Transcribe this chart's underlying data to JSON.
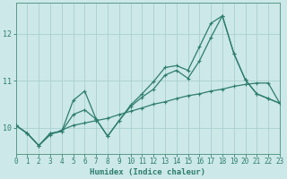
{
  "title": "",
  "xlabel": "Humidex (Indice chaleur)",
  "ylabel": "",
  "background_color": "#cce8e8",
  "grid_color": "#aacfcf",
  "line_color": "#2e7d6e",
  "x_values": [
    0,
    1,
    2,
    3,
    4,
    5,
    6,
    7,
    8,
    9,
    10,
    11,
    12,
    13,
    14,
    15,
    16,
    17,
    18,
    19,
    20,
    21,
    22,
    23
  ],
  "line1": [
    10.05,
    9.88,
    9.62,
    9.88,
    9.92,
    10.58,
    10.78,
    10.18,
    9.82,
    10.15,
    10.48,
    10.72,
    10.98,
    11.28,
    11.32,
    11.22,
    11.72,
    12.22,
    12.38,
    11.58,
    11.02,
    10.72,
    10.62,
    10.52
  ],
  "line2": [
    10.05,
    9.88,
    9.62,
    9.88,
    9.92,
    10.28,
    10.38,
    10.18,
    9.82,
    10.15,
    10.45,
    10.65,
    10.82,
    11.12,
    11.22,
    11.05,
    11.42,
    11.92,
    12.38,
    11.58,
    11.02,
    10.72,
    10.62,
    10.52
  ],
  "line3": [
    10.05,
    9.88,
    9.62,
    9.85,
    9.95,
    10.05,
    10.1,
    10.15,
    10.2,
    10.28,
    10.35,
    10.42,
    10.5,
    10.55,
    10.62,
    10.68,
    10.72,
    10.78,
    10.82,
    10.88,
    10.92,
    10.95,
    10.95,
    10.52
  ],
  "xlim": [
    0,
    23
  ],
  "ylim": [
    9.45,
    12.65
  ],
  "yticks": [
    10,
    11,
    12
  ],
  "xticks": [
    0,
    1,
    2,
    3,
    4,
    5,
    6,
    7,
    8,
    9,
    10,
    11,
    12,
    13,
    14,
    15,
    16,
    17,
    18,
    19,
    20,
    21,
    22,
    23
  ],
  "tick_fontsize": 5.5,
  "xlabel_fontsize": 6.5,
  "tick_color": "#2e7d6e",
  "spine_color": "#5a9a8a"
}
